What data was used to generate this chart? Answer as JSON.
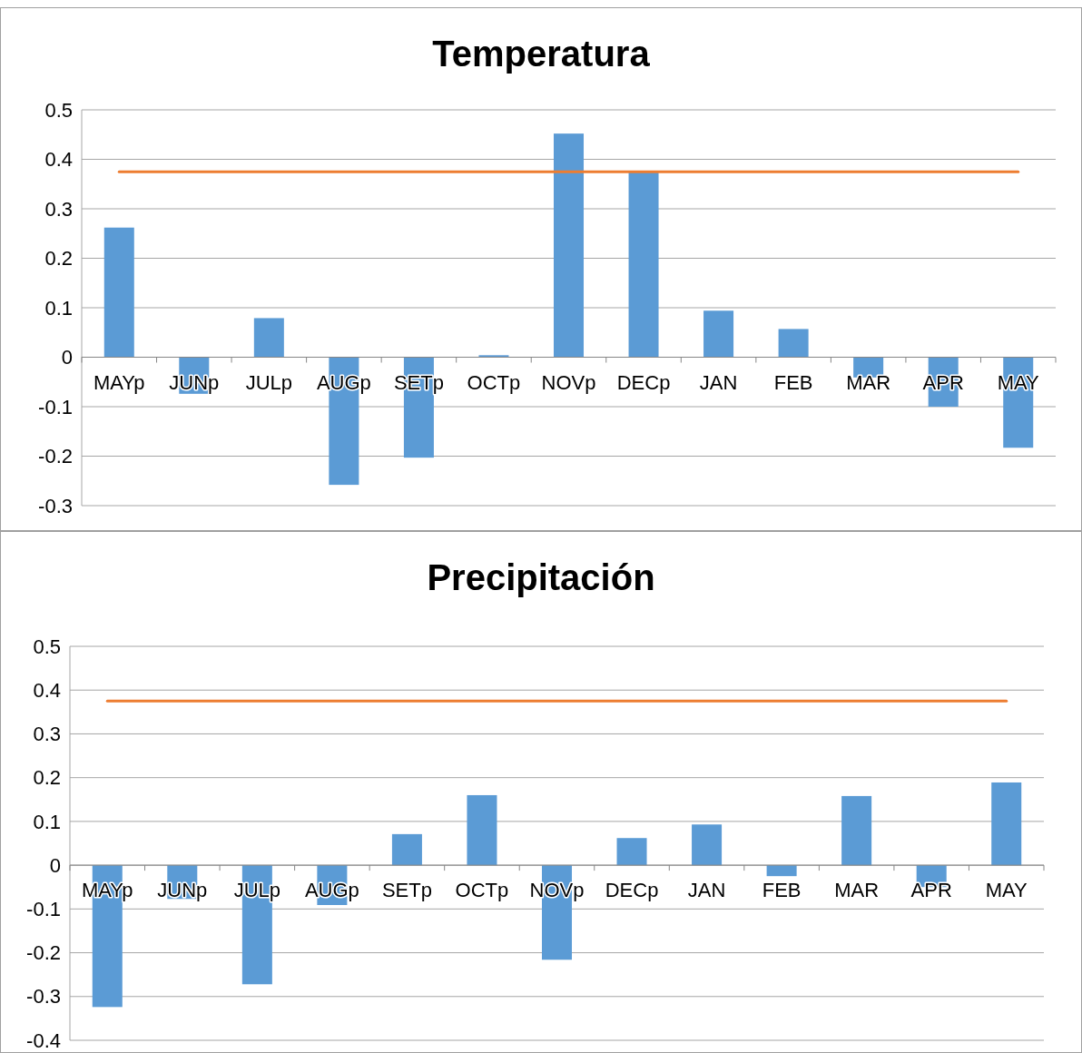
{
  "chart_data": [
    {
      "type": "bar",
      "title": "Temperatura",
      "categories": [
        "MAYp",
        "JUNp",
        "JULp",
        "AUGp",
        "SETp",
        "OCTp",
        "NOVp",
        "DECp",
        "JAN",
        "FEB",
        "MAR",
        "APR",
        "MAY"
      ],
      "ylim": [
        -0.3,
        0.5
      ],
      "yticks": [
        -0.3,
        -0.2,
        -0.1,
        0,
        0.1,
        0.2,
        0.3,
        0.4,
        0.5
      ],
      "grid": "y",
      "series": [
        {
          "color": "#5b9bd5",
          "values": [
            0.262,
            -0.074,
            0.079,
            -0.258,
            -0.203,
            0.004,
            0.452,
            0.375,
            0.094,
            0.057,
            -0.041,
            -0.1,
            -0.183
          ]
        },
        {
          "type": "line",
          "color": "#ed7d31",
          "values": [
            0.375,
            0.375,
            0.375,
            0.375,
            0.375,
            0.375,
            0.375,
            0.375,
            0.375,
            0.375,
            0.375,
            0.375,
            0.375
          ]
        }
      ]
    },
    {
      "type": "bar",
      "title": "Precipitación",
      "categories": [
        "MAYp",
        "JUNp",
        "JULp",
        "AUGp",
        "SETp",
        "OCTp",
        "NOVp",
        "DECp",
        "JAN",
        "FEB",
        "MAR",
        "APR",
        "MAY"
      ],
      "ylim": [
        -0.4,
        0.5
      ],
      "yticks": [
        -0.4,
        -0.3,
        -0.2,
        -0.1,
        0,
        0.1,
        0.2,
        0.3,
        0.4,
        0.5
      ],
      "grid": "y",
      "series": [
        {
          "color": "#5b9bd5",
          "values": [
            -0.324,
            -0.077,
            -0.272,
            -0.091,
            0.071,
            0.16,
            -0.216,
            0.062,
            0.093,
            -0.025,
            0.158,
            -0.05,
            0.189
          ]
        },
        {
          "type": "line",
          "color": "#ed7d31",
          "values": [
            0.375,
            0.375,
            0.375,
            0.375,
            0.375,
            0.375,
            0.375,
            0.375,
            0.375,
            0.375,
            0.375,
            0.375,
            0.375
          ]
        }
      ]
    }
  ]
}
